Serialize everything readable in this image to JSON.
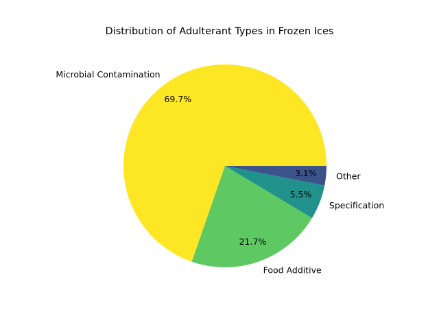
{
  "chart_data": {
    "type": "pie",
    "title": "Distribution of Adulterant Types in Frozen Ices",
    "start_angle_deg": 0,
    "direction": "counterclockwise",
    "slices": [
      {
        "label": "Microbial Contamination",
        "value": 69.7,
        "pct_label": "69.7%",
        "color": "#fde725"
      },
      {
        "label": "Food Additive",
        "value": 21.7,
        "pct_label": "21.7%",
        "color": "#5ec962"
      },
      {
        "label": "Specification",
        "value": 5.5,
        "pct_label": "5.5%",
        "color": "#21918c"
      },
      {
        "label": "Other",
        "value": 3.1,
        "pct_label": "3.1%",
        "color": "#3b528b"
      }
    ],
    "legend": "none"
  }
}
